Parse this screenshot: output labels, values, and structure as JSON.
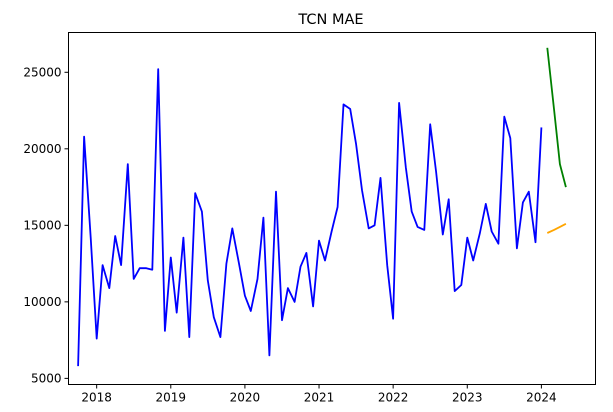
{
  "chart_data": {
    "type": "line",
    "title": "TCN MAE",
    "xlabel": "",
    "ylabel": "",
    "xlim": [
      2017.62,
      2024.73
    ],
    "ylim": [
      4600,
      27600
    ],
    "x_ticks": [
      2018,
      2019,
      2020,
      2021,
      2022,
      2023,
      2024
    ],
    "x_tick_labels": [
      "2018",
      "2019",
      "2020",
      "2021",
      "2022",
      "2023",
      "2024"
    ],
    "y_ticks": [
      5000,
      10000,
      15000,
      20000,
      25000
    ],
    "y_tick_labels": [
      "5000",
      "10000",
      "15000",
      "20000",
      "25000"
    ],
    "grid": false,
    "series": [
      {
        "color": "#0000ff",
        "points": [
          [
            2017.75,
            5800
          ],
          [
            2017.83,
            20800
          ],
          [
            2017.92,
            14200
          ],
          [
            2018.0,
            7600
          ],
          [
            2018.08,
            12400
          ],
          [
            2018.17,
            10900
          ],
          [
            2018.25,
            14300
          ],
          [
            2018.33,
            12400
          ],
          [
            2018.42,
            19000
          ],
          [
            2018.5,
            11500
          ],
          [
            2018.58,
            12200
          ],
          [
            2018.67,
            12200
          ],
          [
            2018.75,
            12100
          ],
          [
            2018.83,
            25200
          ],
          [
            2018.92,
            8100
          ],
          [
            2019.0,
            12900
          ],
          [
            2019.08,
            9300
          ],
          [
            2019.17,
            14200
          ],
          [
            2019.25,
            7700
          ],
          [
            2019.33,
            17100
          ],
          [
            2019.42,
            15900
          ],
          [
            2019.5,
            11400
          ],
          [
            2019.58,
            9000
          ],
          [
            2019.67,
            7700
          ],
          [
            2019.75,
            12500
          ],
          [
            2019.83,
            14800
          ],
          [
            2019.92,
            12500
          ],
          [
            2020.0,
            10400
          ],
          [
            2020.08,
            9400
          ],
          [
            2020.17,
            11500
          ],
          [
            2020.25,
            15500
          ],
          [
            2020.33,
            6500
          ],
          [
            2020.42,
            17200
          ],
          [
            2020.5,
            8800
          ],
          [
            2020.58,
            10900
          ],
          [
            2020.67,
            10000
          ],
          [
            2020.75,
            12300
          ],
          [
            2020.83,
            13200
          ],
          [
            2020.92,
            9700
          ],
          [
            2021.0,
            14000
          ],
          [
            2021.08,
            12700
          ],
          [
            2021.17,
            14600
          ],
          [
            2021.25,
            16200
          ],
          [
            2021.33,
            22900
          ],
          [
            2021.42,
            22600
          ],
          [
            2021.5,
            20300
          ],
          [
            2021.58,
            17300
          ],
          [
            2021.67,
            14800
          ],
          [
            2021.75,
            15000
          ],
          [
            2021.83,
            18100
          ],
          [
            2021.92,
            12400
          ],
          [
            2022.0,
            8900
          ],
          [
            2022.08,
            23000
          ],
          [
            2022.17,
            18800
          ],
          [
            2022.25,
            15900
          ],
          [
            2022.33,
            14900
          ],
          [
            2022.42,
            14700
          ],
          [
            2022.5,
            21600
          ],
          [
            2022.58,
            18500
          ],
          [
            2022.67,
            14400
          ],
          [
            2022.75,
            16700
          ],
          [
            2022.83,
            10700
          ],
          [
            2022.92,
            11100
          ],
          [
            2023.0,
            14200
          ],
          [
            2023.08,
            12700
          ],
          [
            2023.17,
            14500
          ],
          [
            2023.25,
            16400
          ],
          [
            2023.33,
            14600
          ],
          [
            2023.42,
            13800
          ],
          [
            2023.5,
            22100
          ],
          [
            2023.58,
            20700
          ],
          [
            2023.67,
            13500
          ],
          [
            2023.75,
            16500
          ],
          [
            2023.83,
            17200
          ],
          [
            2023.92,
            13900
          ],
          [
            2024.0,
            21400
          ]
        ]
      },
      {
        "color": "#008000",
        "points": [
          [
            2024.08,
            26600
          ],
          [
            2024.17,
            22600
          ],
          [
            2024.25,
            19000
          ],
          [
            2024.33,
            17500
          ]
        ]
      },
      {
        "color": "#ffa500",
        "points": [
          [
            2024.08,
            14500
          ],
          [
            2024.17,
            14700
          ],
          [
            2024.25,
            14900
          ],
          [
            2024.33,
            15100
          ]
        ]
      }
    ]
  }
}
